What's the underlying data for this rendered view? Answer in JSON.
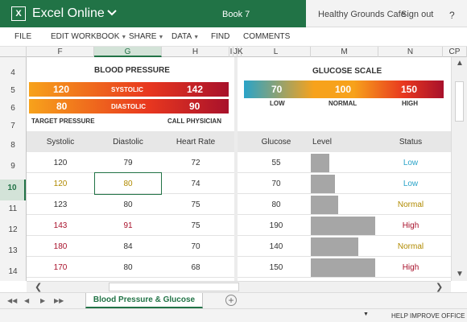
{
  "titlebar": {
    "app_logo": "X",
    "app_name": "Excel Online",
    "book_name": "Book 7",
    "account": "Healthy Grounds Cafe",
    "sign_out": "Sign out",
    "help": "?"
  },
  "ribbon": {
    "file": "FILE",
    "edit": "EDIT WORKBOOK",
    "share": "SHARE",
    "data": "DATA",
    "find": "FIND",
    "comments": "COMMENTS"
  },
  "columns": [
    "F",
    "G",
    "H",
    "I",
    "J",
    "K",
    "L",
    "M",
    "N",
    "CP"
  ],
  "rows": [
    "4",
    "5",
    "6",
    "7",
    "8",
    "9",
    "10",
    "11",
    "12",
    "13",
    "14"
  ],
  "blood_pressure": {
    "title": "BLOOD PRESSURE",
    "systolic_target": "120",
    "systolic_label": "SYSTOLIC",
    "systolic_call": "142",
    "diastolic_target": "80",
    "diastolic_label": "DIASTOLIC",
    "diastolic_call": "90",
    "target_caption": "TARGET PRESSURE",
    "call_caption": "CALL PHYSICIAN"
  },
  "glucose_scale": {
    "title": "GLUCOSE SCALE",
    "low_value": "70",
    "normal_value": "100",
    "high_value": "150",
    "low_label": "LOW",
    "normal_label": "NORMAL",
    "high_label": "HIGH"
  },
  "bp_table": {
    "headers": [
      "Systolic",
      "Diastolic",
      "Heart Rate"
    ],
    "rows": [
      [
        "120",
        "79",
        "72"
      ],
      [
        "120",
        "80",
        "74"
      ],
      [
        "123",
        "80",
        "75"
      ],
      [
        "143",
        "91",
        "75"
      ],
      [
        "180",
        "84",
        "70"
      ],
      [
        "170",
        "80",
        "68"
      ]
    ]
  },
  "glucose_table": {
    "headers": [
      "Glucose",
      "Level",
      "Status"
    ],
    "rows": [
      [
        "55",
        "Low"
      ],
      [
        "70",
        "Low"
      ],
      [
        "80",
        "Normal"
      ],
      [
        "190",
        "High"
      ],
      [
        "140",
        "Normal"
      ],
      [
        "150",
        "High"
      ]
    ],
    "level_fraction": [
      0.29,
      0.37,
      0.42,
      1.0,
      0.74,
      1.0
    ]
  },
  "colors": {
    "excel_green": "#217346",
    "low": "#2aa3c8",
    "normal": "#b08a00",
    "high": "#a8112b"
  },
  "sheet_tab": "Blood Pressure & Glucose",
  "add_sheet": "+",
  "status": "HELP IMPROVE OFFICE"
}
